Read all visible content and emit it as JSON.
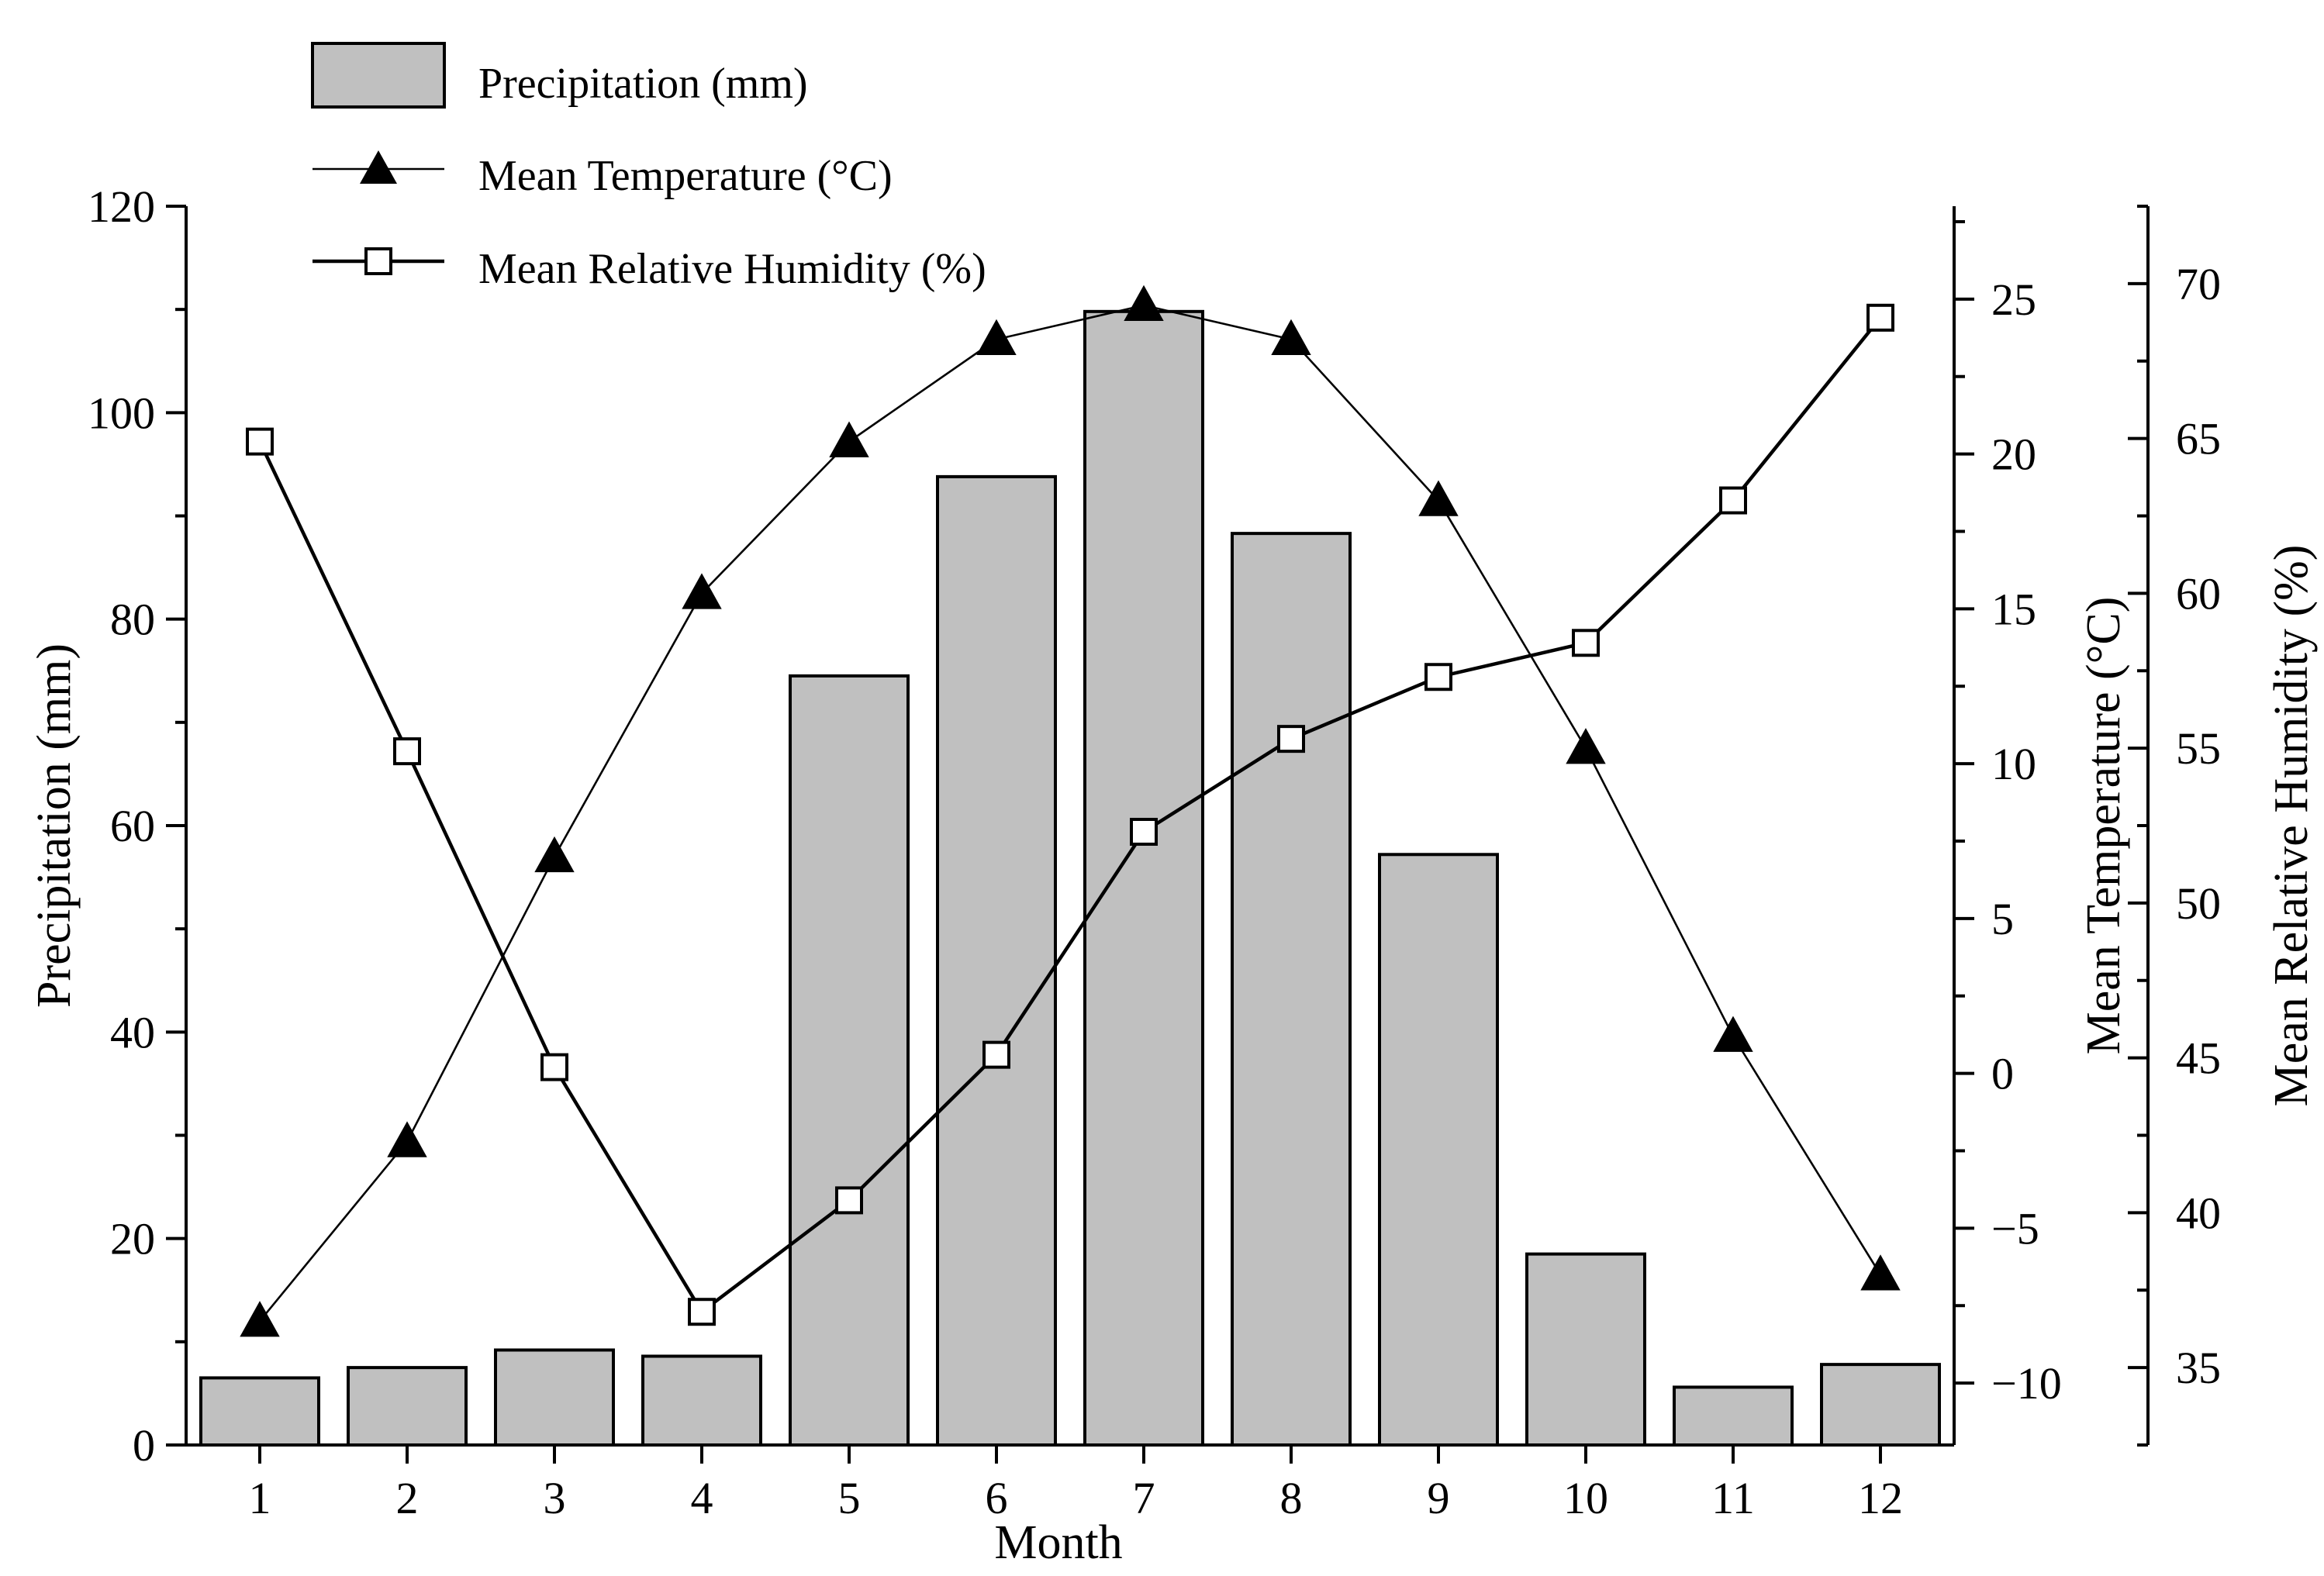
{
  "chart_data": {
    "type": "bar+line",
    "categories": [
      "1",
      "2",
      "3",
      "4",
      "5",
      "6",
      "7",
      "8",
      "9",
      "10",
      "11",
      "12"
    ],
    "xlabel": "Month",
    "series": [
      {
        "name": "Precipitation (mm)",
        "type": "bar",
        "axis": "left",
        "color": "#c0c0c0",
        "values": [
          6.5,
          7.5,
          9.2,
          8.6,
          74.5,
          93.8,
          109.8,
          88.3,
          57.2,
          18.5,
          5.6,
          7.8
        ]
      },
      {
        "name": "Mean Temperature (°C)",
        "type": "line",
        "marker": "filled-triangle",
        "axis": "right1",
        "values": [
          -8.0,
          -2.2,
          7.0,
          15.5,
          20.4,
          23.7,
          24.8,
          23.7,
          18.5,
          10.5,
          1.2,
          -6.5
        ]
      },
      {
        "name": "Mean Relative Humidity (%)",
        "type": "line",
        "marker": "open-square",
        "axis": "right2",
        "values": [
          64.9,
          54.9,
          44.7,
          36.8,
          40.4,
          45.1,
          52.3,
          55.3,
          57.3,
          58.4,
          63.0,
          68.9
        ]
      }
    ],
    "axes": {
      "left": {
        "label": "Precipitation (mm)",
        "min": 0,
        "max": 120,
        "ticks": [
          "0",
          "20",
          "40",
          "60",
          "80",
          "100",
          "120"
        ]
      },
      "right1": {
        "label": "Mean Temperature (°C)",
        "min": -12,
        "max": 28,
        "ticks": [
          "−10",
          "−5",
          "0",
          "5",
          "10",
          "15",
          "20",
          "25"
        ]
      },
      "right2": {
        "label": "Mean Relative Humidity (%)",
        "min": 32.5,
        "max": 72.5,
        "ticks": [
          "35",
          "40",
          "45",
          "50",
          "55",
          "60",
          "65",
          "70"
        ]
      }
    },
    "legend": {
      "position": "top-left",
      "items": [
        "Precipitation (mm)",
        "Mean Temperature (°C)",
        "Mean Relative Humidity (%)"
      ]
    }
  }
}
